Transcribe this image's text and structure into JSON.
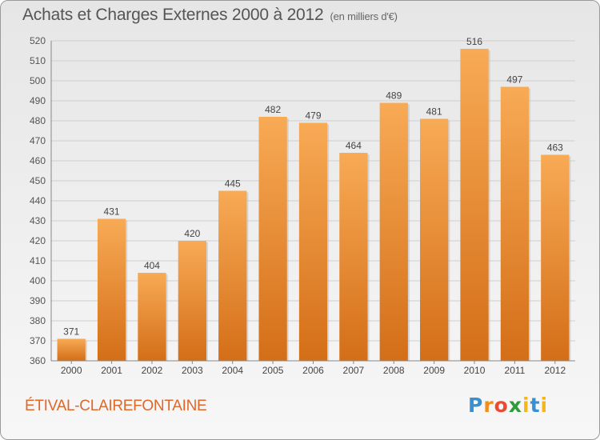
{
  "header": {
    "title": "Achats et Charges Externes 2000 à 2012",
    "subtitle": "(en milliers d'€)"
  },
  "footer": {
    "commune": "ÉTIVAL-CLAIREFONTAINE",
    "logo": "Proxiti"
  },
  "colors": {
    "bar_light": "#f7a54f",
    "bar_dark": "#d7711a",
    "grid": "#cccccc",
    "text": "#555555"
  },
  "chart_data": {
    "type": "bar",
    "title": "Achats et Charges Externes 2000 à 2012",
    "subtitle": "(en milliers d'€)",
    "categories": [
      "2000",
      "2001",
      "2002",
      "2003",
      "2004",
      "2005",
      "2006",
      "2007",
      "2008",
      "2009",
      "2010",
      "2011",
      "2012"
    ],
    "values": [
      371,
      431,
      404,
      420,
      445,
      482,
      479,
      464,
      489,
      481,
      516,
      497,
      463
    ],
    "ylim": [
      360,
      520
    ],
    "yticks": [
      360,
      370,
      380,
      390,
      400,
      410,
      420,
      430,
      440,
      450,
      460,
      470,
      480,
      490,
      500,
      510,
      520
    ],
    "grid": true,
    "xlabel": "",
    "ylabel": ""
  }
}
